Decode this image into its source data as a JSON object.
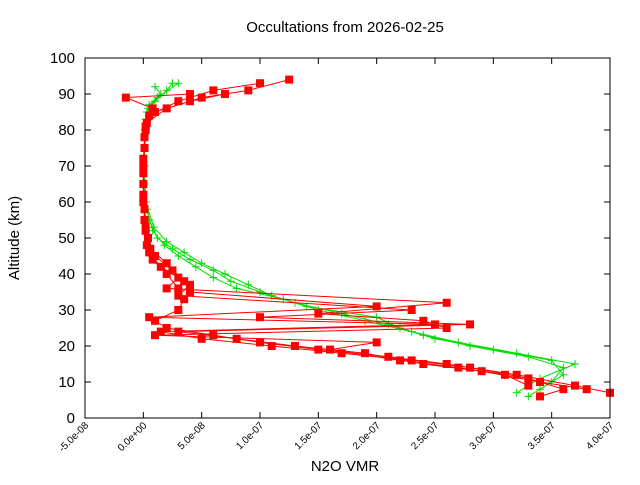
{
  "chart_data": {
    "type": "line",
    "title": "Occultations from 2026-02-25",
    "xlabel": "N2O VMR",
    "ylabel": "Altitude (km)",
    "xlim": [
      -5e-08,
      4e-07
    ],
    "ylim": [
      0,
      100
    ],
    "x_ticks": [
      -5e-08,
      0,
      5e-08,
      1e-07,
      1.5e-07,
      2e-07,
      2.5e-07,
      3e-07,
      3.5e-07,
      4e-07
    ],
    "x_tick_labels": [
      "-5.0e-08",
      "0.0e+00",
      "5.0e-08",
      "1.0e-07",
      "1.5e-07",
      "2.0e-07",
      "2.5e-07",
      "3.0e-07",
      "3.5e-07",
      "4.0e-07"
    ],
    "y_ticks": [
      0,
      10,
      20,
      30,
      40,
      50,
      60,
      70,
      80,
      90,
      100
    ],
    "y_tick_labels": [
      "0",
      "10",
      "20",
      "30",
      "40",
      "50",
      "60",
      "70",
      "80",
      "90",
      "100"
    ],
    "grid": false,
    "legend": "none",
    "series": [
      {
        "color": "#00dd00",
        "marker": "plus",
        "profiles": [
          {
            "alt": [
              6,
              10,
              14,
              17,
              20,
              23,
              26,
              29,
              32,
              35,
              38,
              41,
              44,
              47,
              50,
              55,
              60,
              70,
              80,
              85,
              88,
              91,
              93
            ],
            "vmr": [
              3.3e-07,
              3.5e-07,
              3.6e-07,
              3.3e-07,
              2.8e-07,
              2.4e-07,
              2.1e-07,
              1.7e-07,
              1.3e-07,
              1e-07,
              7.5e-08,
              6e-08,
              4e-08,
              2.5e-08,
              1.2e-08,
              5e-09,
              2e-09,
              1e-09,
              1e-09,
              3e-09,
              1e-08,
              2e-08,
              2.5e-08
            ]
          },
          {
            "alt": [
              7,
              11,
              15,
              18,
              21,
              24,
              27,
              30,
              33,
              36,
              39,
              42,
              45,
              48,
              52,
              58,
              65,
              75,
              83,
              87,
              90,
              92
            ],
            "vmr": [
              3.2e-07,
              3.4e-07,
              3.7e-07,
              3.2e-07,
              2.7e-07,
              2.3e-07,
              1.9e-07,
              1.5e-07,
              1.2e-07,
              8e-08,
              6e-08,
              4.5e-08,
              3e-08,
              1.8e-08,
              8e-09,
              3e-09,
              1e-09,
              1e-09,
              2e-09,
              5e-09,
              1.5e-08,
              1e-08
            ]
          },
          {
            "alt": [
              8,
              12,
              16,
              19,
              22,
              25,
              28,
              31,
              34,
              37,
              40,
              43,
              46,
              49,
              53,
              60,
              70,
              80,
              86,
              89,
              93
            ],
            "vmr": [
              3.4e-07,
              3.6e-07,
              3.5e-07,
              3e-07,
              2.5e-07,
              2.2e-07,
              2e-07,
              1.4e-07,
              1.1e-07,
              9e-08,
              7e-08,
              5e-08,
              3.5e-08,
              2e-08,
              9e-09,
              2e-09,
              1e-09,
              1e-09,
              4e-09,
              1.2e-08,
              3e-08
            ]
          }
        ]
      },
      {
        "color": "#ff0000",
        "marker": "square",
        "profiles": [
          {
            "alt": [
              7,
              9,
              12,
              15,
              17,
              19,
              21,
              23,
              25,
              27,
              30,
              33,
              36,
              40,
              44,
              48,
              55,
              65,
              75,
              82,
              86,
              89,
              91,
              94
            ],
            "vmr": [
              4e-07,
              3.7e-07,
              3.2e-07,
              2.6e-07,
              2.1e-07,
              1.5e-07,
              1e-07,
              6e-08,
              2e-08,
              1e-08,
              3e-08,
              3.5e-08,
              3e-08,
              2e-08,
              8e-09,
              3e-09,
              1e-09,
              0,
              1e-09,
              3e-09,
              2e-08,
              5e-08,
              9e-08,
              1.25e-07
            ]
          },
          {
            "alt": [
              6,
              8,
              11,
              14,
              16,
              18,
              20,
              22,
              24,
              26,
              28,
              31,
              35,
              38,
              42,
              46,
              52,
              60,
              70,
              80,
              85,
              88,
              90
            ],
            "vmr": [
              3.4e-07,
              3.6e-07,
              3.3e-07,
              2.8e-07,
              2.3e-07,
              1.7e-07,
              1.1e-07,
              5e-08,
              1.5e-08,
              2.5e-07,
              5e-09,
              2e-07,
              4e-08,
              3.5e-08,
              1.5e-08,
              5e-09,
              2e-09,
              0,
              0,
              2e-09,
              1e-08,
              4e-08,
              7e-08
            ]
          },
          {
            "alt": [
              8,
              10,
              13,
              15,
              18,
              20,
              22,
              24,
              26,
              28,
              30,
              34,
              37,
              41,
              45,
              50,
              58,
              68,
              78,
              84,
              88,
              91,
              93
            ],
            "vmr": [
              3.8e-07,
              3.4e-07,
              2.9e-07,
              2.4e-07,
              1.9e-07,
              1.3e-07,
              8e-08,
              3e-08,
              2.8e-07,
              1e-07,
              2.3e-07,
              3e-08,
              4e-08,
              2.5e-08,
              1e-08,
              4e-09,
              1e-09,
              0,
              1e-09,
              5e-09,
              3e-08,
              6e-08,
              1e-07
            ]
          },
          {
            "alt": [
              9,
              12,
              14,
              16,
              19,
              21,
              23,
              25,
              27,
              29,
              32,
              36,
              39,
              43,
              47,
              53,
              62,
              72,
              81,
              86,
              89,
              90
            ],
            "vmr": [
              3.3e-07,
              3.1e-07,
              2.7e-07,
              2.2e-07,
              1.6e-07,
              2e-07,
              1e-08,
              2.6e-07,
              2.4e-07,
              1.5e-07,
              2.6e-07,
              2e-08,
              3e-08,
              2e-08,
              6e-09,
              2e-09,
              0,
              0,
              2e-09,
              8e-09,
              -1.5e-08,
              4e-08
            ]
          }
        ]
      }
    ]
  }
}
